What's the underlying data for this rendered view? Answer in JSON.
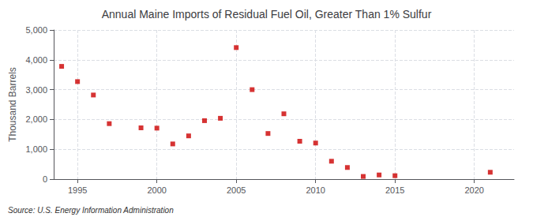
{
  "chart_data": {
    "type": "scatter",
    "title": "Annual Maine Imports of Residual Fuel Oil, Greater Than 1% Sulfur",
    "ylabel": "Thousand Barrels",
    "annotation": "Source: U.S. Energy Information Administration",
    "x": [
      1994,
      1995,
      1996,
      1997,
      1999,
      2000,
      2001,
      2002,
      2003,
      2004,
      2005,
      2006,
      2007,
      2008,
      2009,
      2010,
      2011,
      2012,
      2013,
      2014,
      2015,
      2021
    ],
    "values": [
      3780,
      3270,
      2820,
      1860,
      1720,
      1710,
      1180,
      1450,
      1960,
      2040,
      4410,
      3000,
      1530,
      2190,
      1270,
      1210,
      600,
      390,
      90,
      140,
      115,
      230
    ],
    "color": "#cc0000",
    "marker": "square",
    "xlim": [
      1993.5,
      2022.5
    ],
    "xticks": [
      1995,
      2000,
      2005,
      2010,
      2015,
      2020
    ],
    "ylim": [
      0,
      5000
    ],
    "yticks": [
      0,
      {
        "value": 1000,
        "label": "1,000"
      },
      {
        "value": 2000,
        "label": "2,000"
      },
      {
        "value": 3000,
        "label": "3,000"
      },
      {
        "value": 4000,
        "label": "4,000"
      },
      {
        "value": 5000,
        "label": "5,000"
      }
    ],
    "grid": true
  }
}
